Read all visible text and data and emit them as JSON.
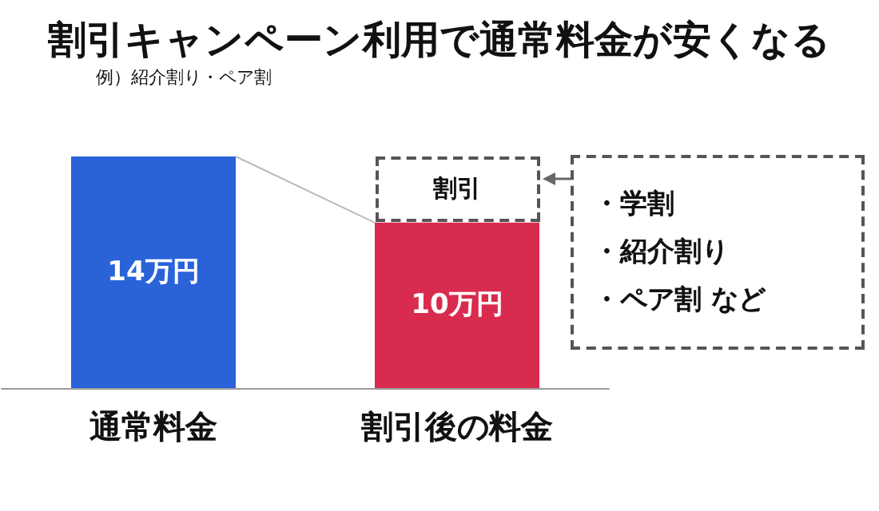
{
  "chart_data": {
    "type": "bar",
    "title": "割引キャンペーン利用で通常料金が安くなる",
    "subtitle": "例）紹介割り・ペア割",
    "categories": [
      "通常料金",
      "割引後の料金"
    ],
    "values": [
      14,
      10
    ],
    "colors": [
      "#2a62d8",
      "#d92b4e"
    ],
    "value_labels": [
      "14万円",
      "10万円"
    ],
    "annotations": [
      "割引",
      "・学割",
      "・紹介割り",
      "・ペア割 など"
    ]
  }
}
